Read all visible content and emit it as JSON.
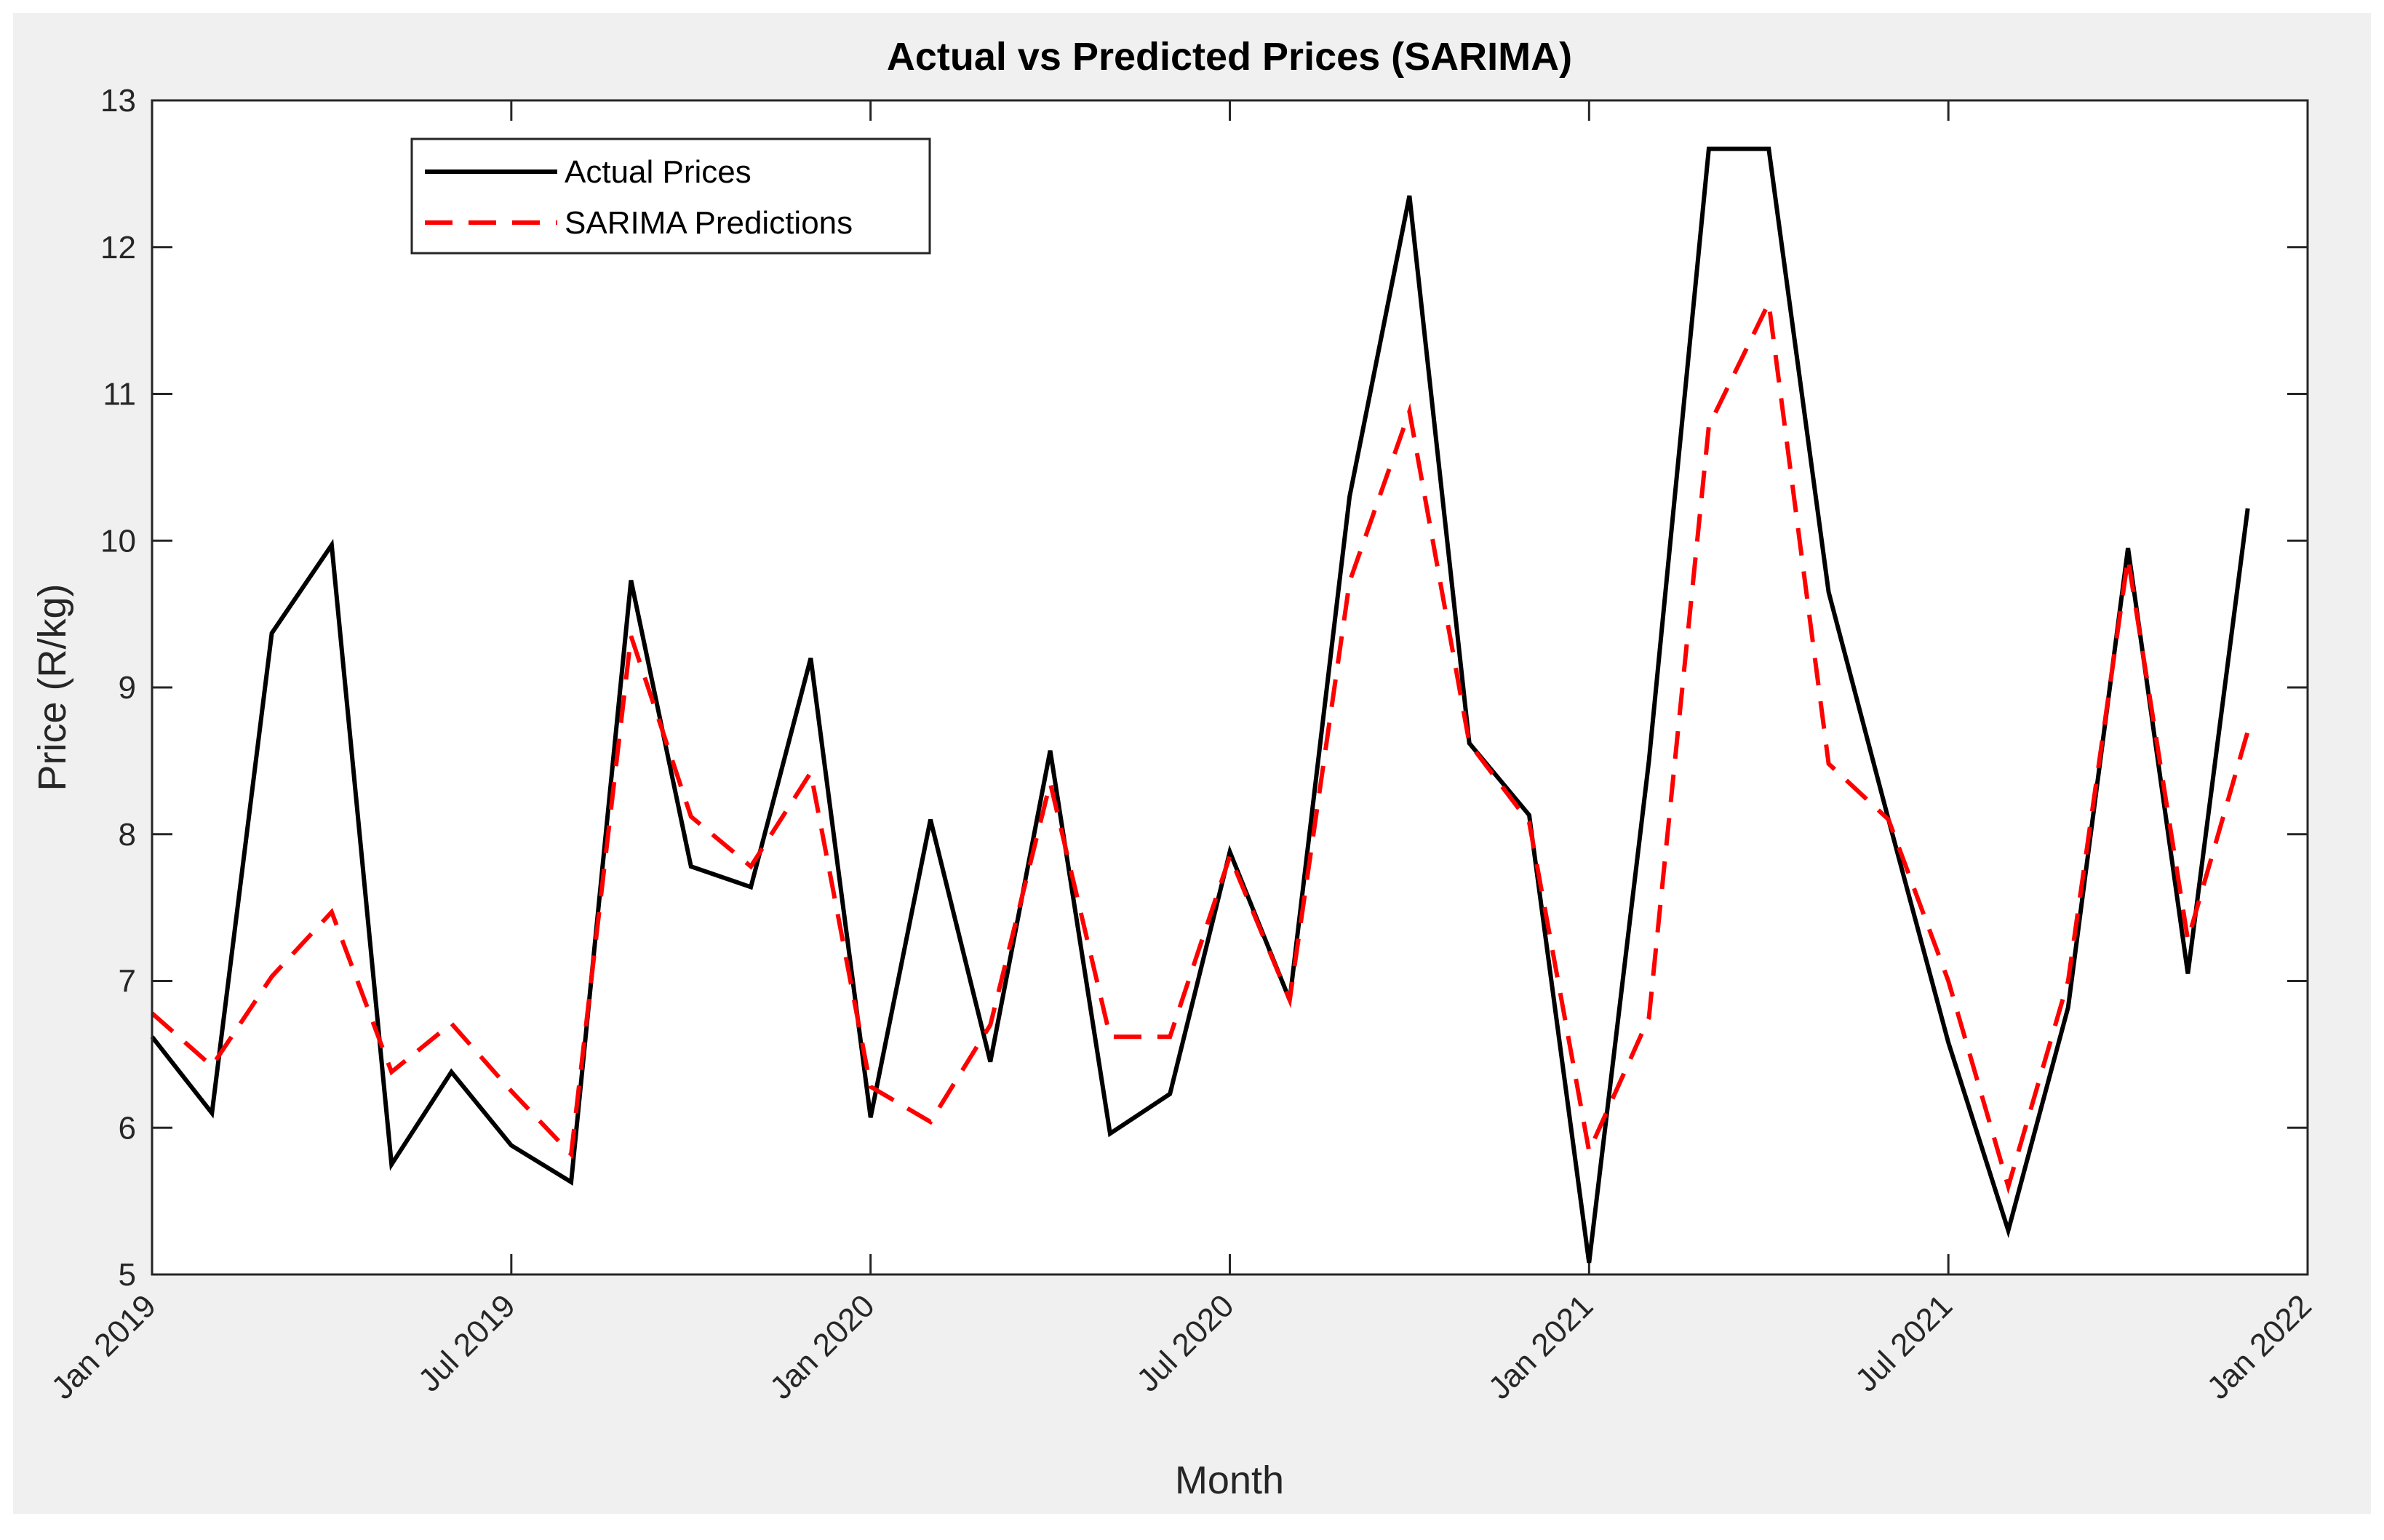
{
  "chart_data": {
    "type": "line",
    "title": "Actual vs Predicted Prices (SARIMA)",
    "xlabel": "Month",
    "ylabel": "Price (R/kg)",
    "xlim": [
      0,
      36
    ],
    "ylim": [
      5,
      13
    ],
    "y_ticks": [
      5,
      6,
      7,
      8,
      9,
      10,
      11,
      12,
      13
    ],
    "x_ticks": [
      {
        "month_index": 0,
        "label": "Jan 2019"
      },
      {
        "month_index": 6,
        "label": "Jul 2019"
      },
      {
        "month_index": 12,
        "label": "Jan 2020"
      },
      {
        "month_index": 18,
        "label": "Jul 2020"
      },
      {
        "month_index": 24,
        "label": "Jan 2021"
      },
      {
        "month_index": 30,
        "label": "Jul 2021"
      },
      {
        "month_index": 36,
        "label": "Jan 2022"
      }
    ],
    "grid": false,
    "legend_position": "top-left",
    "x": [
      0,
      1,
      2,
      3,
      4,
      5,
      6,
      7,
      8,
      9,
      10,
      11,
      12,
      13,
      14,
      15,
      16,
      17,
      18,
      19,
      20,
      21,
      22,
      23,
      24,
      25,
      26,
      27,
      28,
      29,
      30,
      31,
      32,
      33,
      34,
      35
    ],
    "series": [
      {
        "name": "Actual Prices",
        "color": "#000000",
        "style": "solid",
        "values": [
          6.62,
          6.1,
          9.37,
          9.97,
          5.75,
          6.38,
          5.88,
          5.63,
          9.73,
          7.78,
          7.64,
          9.2,
          6.07,
          8.1,
          6.45,
          8.57,
          5.96,
          6.23,
          7.88,
          6.87,
          10.3,
          12.35,
          8.62,
          8.13,
          5.08,
          8.5,
          12.67,
          12.67,
          9.65,
          8.1,
          6.58,
          5.3,
          6.82,
          9.95,
          7.05,
          10.22
        ]
      },
      {
        "name": "SARIMA Predictions",
        "color": "#ff0000",
        "style": "dashed",
        "values": [
          6.78,
          6.42,
          7.03,
          7.47,
          6.38,
          6.71,
          6.25,
          5.82,
          9.35,
          8.12,
          7.78,
          8.42,
          6.28,
          6.04,
          6.7,
          8.35,
          6.62,
          6.62,
          7.85,
          6.87,
          9.72,
          10.88,
          8.62,
          8.08,
          5.84,
          6.75,
          10.78,
          11.62,
          8.48,
          8.1,
          7.0,
          5.6,
          7.0,
          9.88,
          7.28,
          8.7
        ]
      }
    ]
  }
}
